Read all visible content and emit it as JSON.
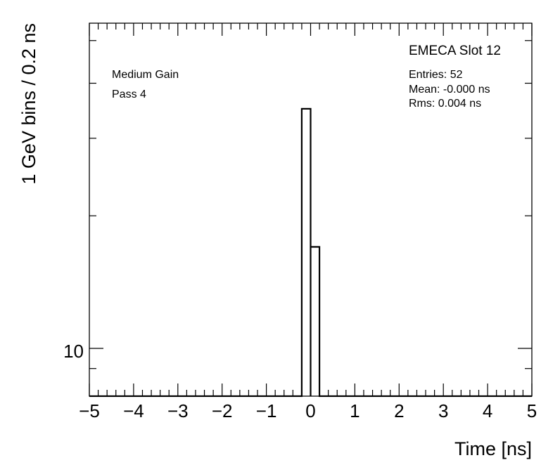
{
  "chart_data": {
    "type": "histogram",
    "title": "EMECA Slot 12",
    "xlabel": "Time [ns]",
    "ylabel": "1 GeV bins / 0.2 ns",
    "xlim": [
      -5,
      5
    ],
    "y_scale": "log",
    "x_ticks": [
      "−5",
      "−4",
      "−3",
      "−2",
      "−1",
      "0",
      "1",
      "2",
      "3",
      "4",
      "5"
    ],
    "y_tick_label": "10",
    "bin_width": 0.2,
    "bins": [
      {
        "x_low": -0.2,
        "x_high": 0.0,
        "count": 35
      },
      {
        "x_low": 0.0,
        "x_high": 0.2,
        "count": 17
      }
    ],
    "labels": {
      "gain": "Medium Gain",
      "pass": "Pass 4"
    },
    "stats": {
      "entries": "Entries: 52",
      "mean": "Mean: -0.000 ns",
      "rms": "Rms: 0.004 ns"
    },
    "grid": false,
    "frame_color": "#000000"
  }
}
